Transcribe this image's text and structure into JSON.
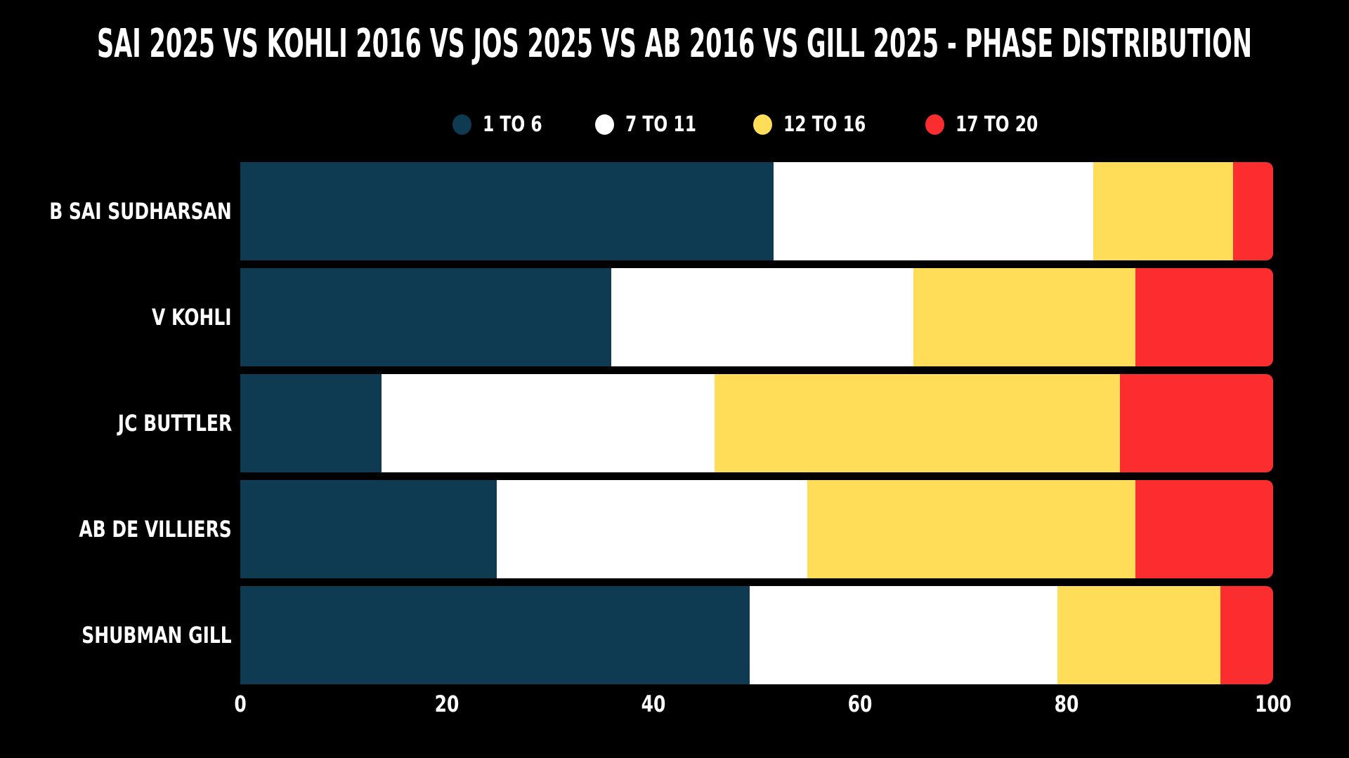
{
  "title": "SAI 2025 VS KOHLI 2016 VS JOS 2025 VS AB 2016 VS GILL 2025 - PHASE DISTRIBUTION",
  "colors": {
    "background": "#000000",
    "text": "#FFFFFF",
    "phase_1_6": "#0E3A52",
    "phase_7_11": "#FFFFFF",
    "phase_12_16": "#FFDD59",
    "phase_17_20": "#FB2D2F"
  },
  "chart_data": {
    "type": "bar",
    "orientation": "horizontal",
    "stacked": true,
    "title": "SAI 2025 VS KOHLI 2016 VS JOS 2025 VS AB 2016 VS GILL 2025 - PHASE DISTRIBUTION",
    "categories": [
      "B SAI SUDHARSAN",
      "V KOHLI",
      "JC BUTTLER",
      "AB DE VILLIERS",
      "SHUBMAN GILL"
    ],
    "series": [
      {
        "name": "1 TO 6",
        "color": "#0E3A52",
        "values": [
          51.6,
          35.9,
          13.7,
          24.8,
          49.3
        ]
      },
      {
        "name": "7 TO 11",
        "color": "#FFFFFF",
        "values": [
          31.0,
          29.3,
          32.2,
          30.1,
          29.8
        ]
      },
      {
        "name": "12 TO 16",
        "color": "#FFDD59",
        "values": [
          13.5,
          21.5,
          39.3,
          31.8,
          15.8
        ]
      },
      {
        "name": "17 TO 20",
        "color": "#FB2D2F",
        "values": [
          3.9,
          13.3,
          14.8,
          13.3,
          5.1
        ]
      }
    ],
    "x_axis": {
      "ticks": [
        0,
        20,
        40,
        60,
        80,
        100
      ],
      "range": [
        0,
        100
      ],
      "unit": "percent"
    },
    "legend_position": "top",
    "grid": false
  }
}
